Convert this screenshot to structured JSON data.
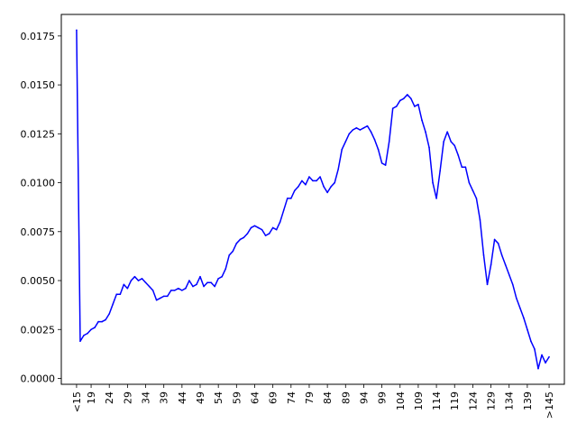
{
  "chart_data": {
    "type": "line",
    "title": "",
    "xlabel": "",
    "ylabel": "",
    "grid": false,
    "legend": "none",
    "x_ticks": [
      {
        "pos": 15,
        "label": "<15"
      },
      {
        "pos": 19,
        "label": "19"
      },
      {
        "pos": 24,
        "label": "24"
      },
      {
        "pos": 29,
        "label": "29"
      },
      {
        "pos": 34,
        "label": "34"
      },
      {
        "pos": 39,
        "label": "39"
      },
      {
        "pos": 44,
        "label": "44"
      },
      {
        "pos": 49,
        "label": "49"
      },
      {
        "pos": 54,
        "label": "54"
      },
      {
        "pos": 59,
        "label": "59"
      },
      {
        "pos": 64,
        "label": "64"
      },
      {
        "pos": 69,
        "label": "69"
      },
      {
        "pos": 74,
        "label": "74"
      },
      {
        "pos": 79,
        "label": "79"
      },
      {
        "pos": 84,
        "label": "84"
      },
      {
        "pos": 89,
        "label": "89"
      },
      {
        "pos": 94,
        "label": "94"
      },
      {
        "pos": 99,
        "label": "99"
      },
      {
        "pos": 104,
        "label": "104"
      },
      {
        "pos": 109,
        "label": "109"
      },
      {
        "pos": 114,
        "label": "114"
      },
      {
        "pos": 119,
        "label": "119"
      },
      {
        "pos": 124,
        "label": "124"
      },
      {
        "pos": 129,
        "label": "129"
      },
      {
        "pos": 134,
        "label": "134"
      },
      {
        "pos": 139,
        "label": "139"
      },
      {
        "pos": 145,
        "label": ">145"
      }
    ],
    "y_ticks": [
      "0.0000",
      "0.0025",
      "0.0050",
      "0.0075",
      "0.0100",
      "0.0125",
      "0.0150",
      "0.0175"
    ],
    "xlim": [
      10.8,
      149.2
    ],
    "ylim": [
      -0.0003,
      0.0186
    ],
    "series": [
      {
        "color": "#0000ff",
        "x": [
          15,
          16,
          17,
          18,
          19,
          20,
          21,
          22,
          23,
          24,
          25,
          26,
          27,
          28,
          29,
          30,
          31,
          32,
          33,
          34,
          35,
          36,
          37,
          38,
          39,
          40,
          41,
          42,
          43,
          44,
          45,
          46,
          47,
          48,
          49,
          50,
          51,
          52,
          53,
          54,
          55,
          56,
          57,
          58,
          59,
          60,
          61,
          62,
          63,
          64,
          65,
          66,
          67,
          68,
          69,
          70,
          71,
          72,
          73,
          74,
          75,
          76,
          77,
          78,
          79,
          80,
          81,
          82,
          83,
          84,
          85,
          86,
          87,
          88,
          89,
          90,
          91,
          92,
          93,
          94,
          95,
          96,
          97,
          98,
          99,
          100,
          101,
          102,
          103,
          104,
          105,
          106,
          107,
          108,
          109,
          110,
          111,
          112,
          113,
          114,
          115,
          116,
          117,
          118,
          119,
          120,
          121,
          122,
          123,
          124,
          125,
          126,
          127,
          128,
          129,
          130,
          131,
          132,
          133,
          134,
          135,
          136,
          137,
          138,
          139,
          140,
          141,
          142,
          143,
          144,
          145
        ],
        "values": [
          0.0178,
          0.0019,
          0.0022,
          0.0023,
          0.0025,
          0.0026,
          0.0029,
          0.0029,
          0.003,
          0.0033,
          0.0038,
          0.0043,
          0.0043,
          0.0048,
          0.0046,
          0.005,
          0.0052,
          0.005,
          0.0051,
          0.0049,
          0.0047,
          0.0045,
          0.004,
          0.0041,
          0.0042,
          0.0042,
          0.0045,
          0.0045,
          0.0046,
          0.0045,
          0.0046,
          0.005,
          0.0047,
          0.0048,
          0.0052,
          0.0047,
          0.0049,
          0.0049,
          0.0047,
          0.0051,
          0.0052,
          0.0056,
          0.0063,
          0.0065,
          0.0069,
          0.0071,
          0.0072,
          0.0074,
          0.0077,
          0.0078,
          0.0077,
          0.0076,
          0.0073,
          0.0074,
          0.0077,
          0.0076,
          0.008,
          0.0086,
          0.0092,
          0.0092,
          0.0096,
          0.0098,
          0.0101,
          0.0099,
          0.0103,
          0.0101,
          0.0101,
          0.0103,
          0.0098,
          0.0095,
          0.0098,
          0.01,
          0.0107,
          0.0117,
          0.0121,
          0.0125,
          0.0127,
          0.0128,
          0.0127,
          0.0128,
          0.0129,
          0.0126,
          0.0122,
          0.0117,
          0.011,
          0.0109,
          0.0121,
          0.0138,
          0.0139,
          0.0142,
          0.0143,
          0.0145,
          0.0143,
          0.0139,
          0.014,
          0.0132,
          0.0126,
          0.0118,
          0.01,
          0.0092,
          0.0106,
          0.0121,
          0.0126,
          0.0121,
          0.0119,
          0.0114,
          0.0108,
          0.0108,
          0.01,
          0.0096,
          0.0092,
          0.0081,
          0.0063,
          0.0048,
          0.0058,
          0.0071,
          0.0069,
          0.0063,
          0.0058,
          0.0053,
          0.0048,
          0.0041,
          0.0036,
          0.0031,
          0.0025,
          0.0019,
          0.0015,
          0.0005,
          0.0012,
          0.0008,
          0.0011
        ]
      }
    ]
  }
}
